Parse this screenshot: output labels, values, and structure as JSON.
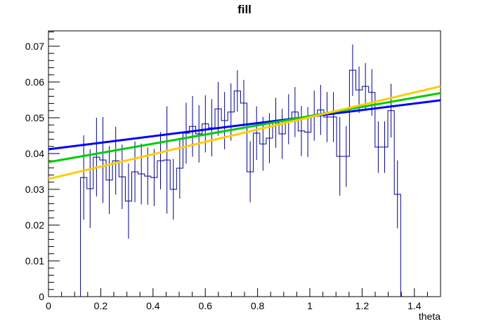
{
  "page": {
    "background": "#ffffff"
  },
  "chart_data": {
    "type": "histogram",
    "title": "fill",
    "xlabel": "theta",
    "ylabel": "",
    "xlim": [
      0,
      1.5
    ],
    "ylim": [
      0,
      0.0743
    ],
    "grid": false,
    "legend": "none",
    "frame_color": "#000000",
    "x_major_ticks": [
      0,
      0.2,
      0.4,
      0.6,
      0.8,
      1.0,
      1.2,
      1.4
    ],
    "x_tick_labels": [
      "0",
      "0.2",
      "0.4",
      "0.6",
      "0.8",
      "1",
      "1.2",
      "1.4"
    ],
    "x_minor_step": 0.05,
    "y_major_ticks": [
      0,
      0.01,
      0.02,
      0.03,
      0.04,
      0.05,
      0.06,
      0.07
    ],
    "y_tick_labels": [
      "0",
      "0.01",
      "0.02",
      "0.03",
      "0.04",
      "0.05",
      "0.06",
      "0.07"
    ],
    "y_minor_step": 0.002,
    "histogram": {
      "name": "fill-profile-histogram",
      "color": "#00008c",
      "bin_start": 0.1225,
      "bin_width": 0.0245,
      "values": [
        0.0333,
        0.0302,
        0.039,
        0.0382,
        0.0326,
        0.038,
        0.0335,
        0.0267,
        0.0349,
        0.0343,
        0.0337,
        0.0333,
        0.038,
        0.0382,
        0.03,
        0.0359,
        0.0457,
        0.0476,
        0.0455,
        0.0483,
        0.0472,
        0.0525,
        0.0492,
        0.0516,
        0.0575,
        0.0541,
        0.0349,
        0.0457,
        0.0427,
        0.0443,
        0.0486,
        0.0455,
        0.0496,
        0.0516,
        0.0463,
        0.046,
        0.0506,
        0.0522,
        0.0502,
        0.0502,
        0.0392,
        0.0392,
        0.0633,
        0.0578,
        0.0588,
        0.0571,
        0.0418,
        0.0418,
        0.052,
        0.0286
      ],
      "errors": [
        0.0118,
        0.011,
        0.011,
        0.012,
        0.0095,
        0.0095,
        0.009,
        0.0105,
        0.0085,
        0.0085,
        0.008,
        0.008,
        0.008,
        0.015,
        0.0085,
        0.0085,
        0.0085,
        0.0085,
        0.008,
        0.008,
        0.008,
        0.0075,
        0.008,
        0.008,
        0.0058,
        0.0065,
        0.0085,
        0.0075,
        0.0075,
        0.007,
        0.007,
        0.007,
        0.007,
        0.007,
        0.007,
        0.007,
        0.007,
        0.007,
        0.007,
        0.007,
        0.011,
        0.0085,
        0.0072,
        0.0065,
        0.0065,
        0.0065,
        0.0072,
        0.0072,
        0.0075,
        0.0095
      ]
    },
    "fit_lines": [
      {
        "name": "fit-line-blue",
        "color": "#0000ff",
        "y_start": 0.0412,
        "y_end": 0.0549
      },
      {
        "name": "fit-line-green",
        "color": "#00cc00",
        "y_start": 0.0376,
        "y_end": 0.0569
      },
      {
        "name": "fit-line-yellow",
        "color": "#ffcc00",
        "y_start": 0.0329,
        "y_end": 0.0588
      }
    ]
  }
}
